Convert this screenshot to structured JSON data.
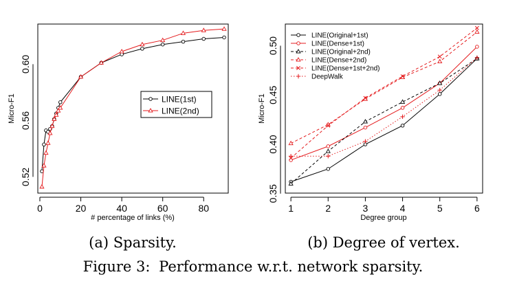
{
  "figure": {
    "caption_prefix": "Figure 3:",
    "caption_text": "Performance w.r.t. network sparsity."
  },
  "chart_data": [
    {
      "type": "line",
      "subcaption": "(a) Sparsity.",
      "xlabel": "# percentage of links (%)",
      "ylabel": "Micro-F1",
      "xlim": [
        -1,
        92
      ],
      "ylim": [
        0.5085,
        0.6285
      ],
      "xticks": [
        0,
        20,
        40,
        60,
        80
      ],
      "yticks": [
        0.52,
        0.56,
        0.6
      ],
      "ytick_labels": [
        "0.52",
        "0.56",
        "0.60"
      ],
      "grid": false,
      "legend_position": "right-middle",
      "series": [
        {
          "name": "LINE(1st)",
          "color": "#000000",
          "marker": "circle",
          "dash": "solid",
          "x": [
            1,
            2,
            3,
            4,
            5,
            6,
            7,
            8,
            9,
            10,
            20,
            30,
            40,
            50,
            60,
            70,
            80,
            90
          ],
          "y": [
            0.524,
            0.543,
            0.553,
            0.552,
            0.554,
            0.556,
            0.561,
            0.565,
            0.569,
            0.573,
            0.591,
            0.601,
            0.607,
            0.611,
            0.614,
            0.616,
            0.618,
            0.619
          ]
        },
        {
          "name": "LINE(2nd)",
          "color": "#e41a1c",
          "marker": "triangle",
          "dash": "solid",
          "x": [
            1,
            2,
            3,
            4,
            5,
            6,
            7,
            8,
            9,
            10,
            20,
            30,
            40,
            50,
            60,
            70,
            80,
            90
          ],
          "y": [
            0.513,
            0.528,
            0.537,
            0.544,
            0.551,
            0.556,
            0.561,
            0.564,
            0.567,
            0.569,
            0.591,
            0.601,
            0.609,
            0.614,
            0.617,
            0.622,
            0.624,
            0.625
          ]
        }
      ]
    },
    {
      "type": "line",
      "subcaption": "(b) Degree of vertex.",
      "xlabel": "Degree group",
      "ylabel": "Micro-F1",
      "xlim": [
        0.85,
        6.15
      ],
      "ylim": [
        0.3505,
        0.522
      ],
      "xticks": [
        1,
        2,
        3,
        4,
        5,
        6
      ],
      "yticks": [
        0.35,
        0.4,
        0.45,
        0.5
      ],
      "ytick_labels": [
        "0.35",
        "0.40",
        "0.45",
        "0.50"
      ],
      "grid": false,
      "legend_position": "top-left",
      "series": [
        {
          "name": "LINE(Original+1st)",
          "color": "#000000",
          "marker": "circle",
          "dash": "solid",
          "x": [
            1,
            2,
            3,
            4,
            5,
            6
          ],
          "y": [
            0.362,
            0.375,
            0.4,
            0.419,
            0.451,
            0.487
          ]
        },
        {
          "name": "LINE(Dense+1st)",
          "color": "#e41a1c",
          "marker": "circle",
          "dash": "solid",
          "x": [
            1,
            2,
            3,
            4,
            5,
            6
          ],
          "y": [
            0.384,
            0.398,
            0.417,
            0.437,
            0.462,
            0.499
          ]
        },
        {
          "name": "LINE(Original+2nd)",
          "color": "#000000",
          "marker": "triangle",
          "dash": "dashed",
          "x": [
            1,
            2,
            3,
            4,
            5,
            6
          ],
          "y": [
            0.36,
            0.393,
            0.423,
            0.443,
            0.462,
            0.487
          ]
        },
        {
          "name": "LINE(Dense+2nd)",
          "color": "#e41a1c",
          "marker": "triangle",
          "dash": "dashed",
          "x": [
            1,
            2,
            3,
            4,
            5,
            6
          ],
          "y": [
            0.401,
            0.42,
            0.446,
            0.468,
            0.484,
            0.514
          ]
        },
        {
          "name": "LINE(Dense+1st+2nd)",
          "color": "#e41a1c",
          "marker": "x",
          "dash": "dashed",
          "x": [
            1,
            2,
            3,
            4,
            5,
            6
          ],
          "y": [
            0.386,
            0.419,
            0.447,
            0.469,
            0.489,
            0.518
          ]
        },
        {
          "name": "DeepWalk",
          "color": "#e41a1c",
          "marker": "plus",
          "dash": "dotted",
          "x": [
            1,
            2,
            3,
            4,
            5,
            6
          ],
          "y": [
            0.388,
            0.388,
            0.403,
            0.428,
            0.455,
            0.488
          ]
        }
      ]
    }
  ]
}
